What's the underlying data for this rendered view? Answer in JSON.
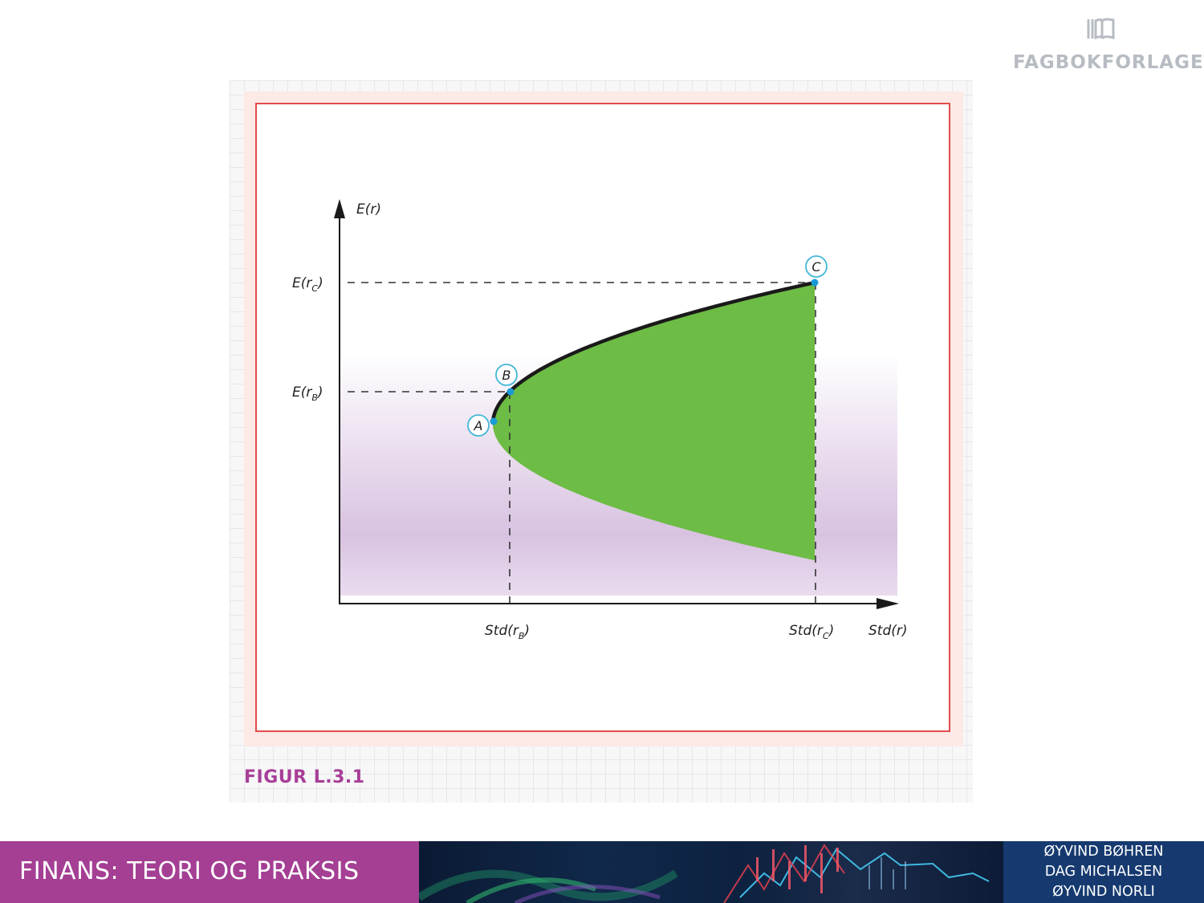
{
  "publisher": {
    "name": "FAGBOKFORLAGET",
    "icon": "book-icon"
  },
  "figure": {
    "caption": "FIGUR L.3.1",
    "y_axis_label": "E(r)",
    "x_axis_label": "Std(r)",
    "y_ticks": [
      {
        "base": "E(r",
        "sub": "C",
        "close": ")"
      },
      {
        "base": "E(r",
        "sub": "B",
        "close": ")"
      }
    ],
    "x_ticks": [
      {
        "base": "Std(r",
        "sub": "B",
        "close": ")"
      },
      {
        "base": "Std(r",
        "sub": "C",
        "close": ")"
      }
    ],
    "points": [
      "A",
      "B",
      "C"
    ],
    "colors": {
      "feasible_region": "#6dbc45",
      "frontier_line": "#1a1a1a",
      "point_marker": "#1a9ad6",
      "frame_border": "#e34c4c",
      "background_tint": "#d8c2e0"
    }
  },
  "footer": {
    "book_title": "FINANS: TEORI OG PRAKSIS",
    "authors": [
      "ØYVIND BØHREN",
      "DAG MICHALSEN",
      "ØYVIND NORLI"
    ]
  }
}
